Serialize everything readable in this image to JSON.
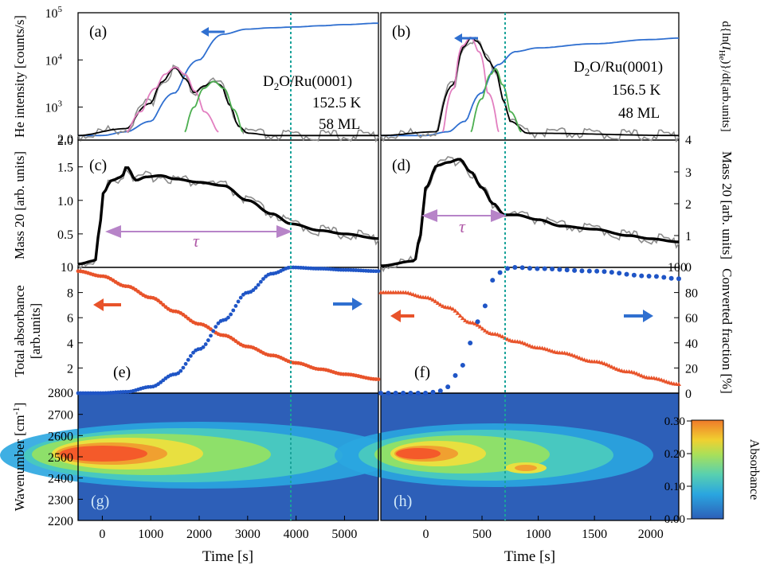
{
  "chart_data": [
    {
      "panel": "a",
      "type": "line",
      "column": "left",
      "label": "(a)",
      "ylabel": "He intensity [counts/s]",
      "yscale": "log",
      "ylim": [
        200,
        100000
      ],
      "xlim": [
        -500,
        5700
      ],
      "yticks": [
        "2.0",
        "10^3",
        "10^4",
        "10^5"
      ],
      "annotations": [
        "D2O/Ru(0001)",
        "152.5 K",
        "58 ML"
      ],
      "series": [
        {
          "color": "#2f6fd0",
          "x": [
            -500,
            0,
            500,
            1000,
            1500,
            2000,
            2500,
            3000,
            3500,
            4000,
            4500,
            5000,
            5700
          ],
          "y": [
            250,
            250,
            300,
            500,
            2000,
            10000,
            35000,
            45000,
            48000,
            50000,
            53000,
            56000,
            60000
          ]
        },
        {
          "color": "#000000",
          "x": [
            -500,
            500,
            1000,
            1250,
            1500,
            1700,
            1900,
            2100,
            2300,
            2450,
            2600,
            2800,
            3000,
            3500,
            5700
          ],
          "y": [
            250,
            350,
            1200,
            3500,
            6800,
            4000,
            2000,
            2800,
            3500,
            2900,
            1200,
            400,
            280,
            250,
            250
          ]
        },
        {
          "color": "#e27fc0",
          "x": [
            500,
            800,
            1100,
            1300,
            1500,
            1700,
            1900,
            2100,
            2400
          ],
          "y": [
            300,
            800,
            2500,
            5000,
            7000,
            5000,
            2200,
            800,
            300
          ]
        },
        {
          "color": "#4caf50",
          "x": [
            1700,
            1900,
            2100,
            2300,
            2500,
            2700,
            2900
          ],
          "y": [
            300,
            1000,
            2500,
            3500,
            2500,
            900,
            300
          ]
        }
      ]
    },
    {
      "panel": "b",
      "type": "line",
      "column": "right",
      "label": "(b)",
      "ylabel_right": "d{ln(I_He)}/dt[arb.units]",
      "yscale": "log",
      "ylim": [
        200,
        100000
      ],
      "xlim": [
        -400,
        2250
      ],
      "annotations": [
        "D2O/Ru(0001)",
        "156.5 K",
        "48 ML"
      ],
      "series": [
        {
          "color": "#2f6fd0",
          "x": [
            -400,
            0,
            200,
            350,
            500,
            650,
            800,
            1000,
            1500,
            2000,
            2250
          ],
          "y": [
            250,
            250,
            300,
            500,
            2000,
            8000,
            15000,
            18000,
            22000,
            27000,
            29000
          ]
        },
        {
          "color": "#000000",
          "x": [
            -400,
            100,
            250,
            350,
            400,
            450,
            550,
            620,
            680,
            750,
            900,
            2250
          ],
          "y": [
            250,
            300,
            3000,
            20000,
            30000,
            25000,
            10000,
            6000,
            1500,
            500,
            280,
            250
          ]
        },
        {
          "color": "#e27fc0",
          "x": [
            150,
            250,
            330,
            400,
            470,
            550,
            650
          ],
          "y": [
            300,
            2500,
            20000,
            30000,
            15000,
            2000,
            300
          ]
        },
        {
          "color": "#4caf50",
          "x": [
            400,
            500,
            580,
            620,
            680,
            750,
            850
          ],
          "y": [
            300,
            1500,
            5000,
            6500,
            3000,
            800,
            300
          ]
        }
      ]
    },
    {
      "panel": "c",
      "type": "line",
      "column": "left",
      "label": "(c)",
      "ylabel": "Mass 20 [arb. units]",
      "ylim": [
        0.0,
        1.9
      ],
      "xlim": [
        -500,
        5700
      ],
      "yticks": [
        "0.5",
        "1.0",
        "1.5"
      ],
      "annotations": [
        "τ"
      ],
      "arrow_x": [
        0,
        3900
      ],
      "series": [
        {
          "color": "#000000",
          "x": [
            -500,
            -150,
            -50,
            0,
            200,
            400,
            500,
            700,
            900,
            1200,
            1500,
            2000,
            2500,
            3000,
            3500,
            3900,
            4500,
            5000,
            5700
          ],
          "y": [
            0.05,
            0.1,
            0.6,
            1.1,
            1.3,
            1.35,
            1.5,
            1.3,
            1.35,
            1.37,
            1.32,
            1.27,
            1.22,
            1.0,
            0.8,
            0.65,
            0.55,
            0.5,
            0.43
          ]
        }
      ]
    },
    {
      "panel": "d",
      "type": "line",
      "column": "right",
      "label": "(d)",
      "ylabel_right": "Mass 20 [arb. units]",
      "ylim": [
        0,
        4.0
      ],
      "xlim": [
        -400,
        2250
      ],
      "yticks_right": [
        "1",
        "2",
        "3"
      ],
      "annotations": [
        "τ"
      ],
      "arrow_x": [
        0,
        700
      ],
      "series": [
        {
          "color": "#000000",
          "x": [
            -400,
            -100,
            -50,
            0,
            100,
            200,
            300,
            400,
            500,
            600,
            700,
            800,
            1000,
            1200,
            1500,
            1800,
            2000,
            2250
          ],
          "y": [
            0.05,
            0.2,
            1.0,
            2.5,
            3.2,
            3.3,
            3.4,
            3.0,
            2.5,
            2.0,
            1.65,
            1.65,
            1.5,
            1.3,
            1.2,
            1.0,
            0.9,
            0.8
          ]
        }
      ]
    },
    {
      "panel": "e",
      "type": "scatter",
      "column": "left",
      "label": "(e)",
      "ylabel": "Total absorbance [arb.units]",
      "ylim": [
        0,
        10
      ],
      "xlim": [
        -500,
        5700
      ],
      "yticks": [
        "2",
        "4",
        "6",
        "8",
        "10"
      ],
      "series": [
        {
          "color": "#e8532a",
          "x": [
            -500,
            0,
            500,
            1000,
            1500,
            2000,
            2500,
            3000,
            3500,
            4000,
            4500,
            5000,
            5700
          ],
          "y": [
            9.7,
            9.3,
            8.5,
            7.6,
            6.5,
            5.5,
            4.6,
            3.7,
            3.0,
            2.4,
            1.9,
            1.5,
            1.1
          ]
        },
        {
          "color": "#1f55c6",
          "axis": "right",
          "x": [
            -500,
            0,
            500,
            1000,
            1500,
            2000,
            2500,
            3000,
            3500,
            3900,
            4500,
            5000,
            5700
          ],
          "y": [
            0,
            0,
            1,
            5,
            15,
            35,
            58,
            80,
            95,
            100,
            99,
            98,
            97
          ]
        }
      ]
    },
    {
      "panel": "f",
      "type": "scatter",
      "column": "right",
      "label": "(f)",
      "ylabel_right": "Converted fraction [%]",
      "ylim": [
        0,
        100
      ],
      "xlim": [
        -400,
        2250
      ],
      "yticks_right": [
        "0",
        "20",
        "40",
        "60",
        "80",
        "100"
      ],
      "series": [
        {
          "color": "#e8532a",
          "x": [
            -400,
            -200,
            0,
            200,
            400,
            600,
            800,
            1000,
            1200,
            1500,
            1800,
            2000,
            2250
          ],
          "y": [
            80,
            80,
            76,
            68,
            56,
            47,
            41,
            36,
            32,
            25,
            17,
            12,
            7
          ]
        },
        {
          "color": "#1f55c6",
          "x": [
            -400,
            0,
            100,
            200,
            300,
            400,
            500,
            600,
            700,
            800,
            1000,
            1500,
            2000,
            2250
          ],
          "y": [
            0,
            0,
            1,
            5,
            18,
            40,
            65,
            90,
            99,
            100,
            99,
            97,
            93,
            91
          ]
        }
      ]
    },
    {
      "panel": "g",
      "type": "heatmap",
      "column": "left",
      "label": "(g)",
      "ylabel": "Wavenumber [cm^-1]",
      "ylim": [
        2200,
        2800
      ],
      "xlim": [
        -500,
        5700
      ],
      "yticks": [
        "2200",
        "2300",
        "2400",
        "2500",
        "2600",
        "2700",
        "2800"
      ],
      "xticks": [
        "0",
        "1000",
        "2000",
        "3000",
        "4000",
        "5000"
      ],
      "xlabel": "Time [s]"
    },
    {
      "panel": "h",
      "type": "heatmap",
      "column": "right",
      "label": "(h)",
      "ylim": [
        2200,
        2800
      ],
      "xlim": [
        -400,
        2250
      ],
      "xticks": [
        "0",
        "500",
        "1000",
        "1500",
        "2000"
      ],
      "xlabel": "Time [s]"
    }
  ],
  "colorbar": {
    "label": "Absorbance",
    "ticks": [
      "0.00",
      "0.10",
      "0.20",
      "0.30"
    ],
    "colors": [
      "#2d5fb8",
      "#2aa6e0",
      "#58d0b0",
      "#a8e05a",
      "#f0d030",
      "#f07a2a"
    ]
  },
  "markers": {
    "left_dashed_x": 3900,
    "right_dashed_x": 700,
    "dashed_color": "#1aa39a"
  }
}
